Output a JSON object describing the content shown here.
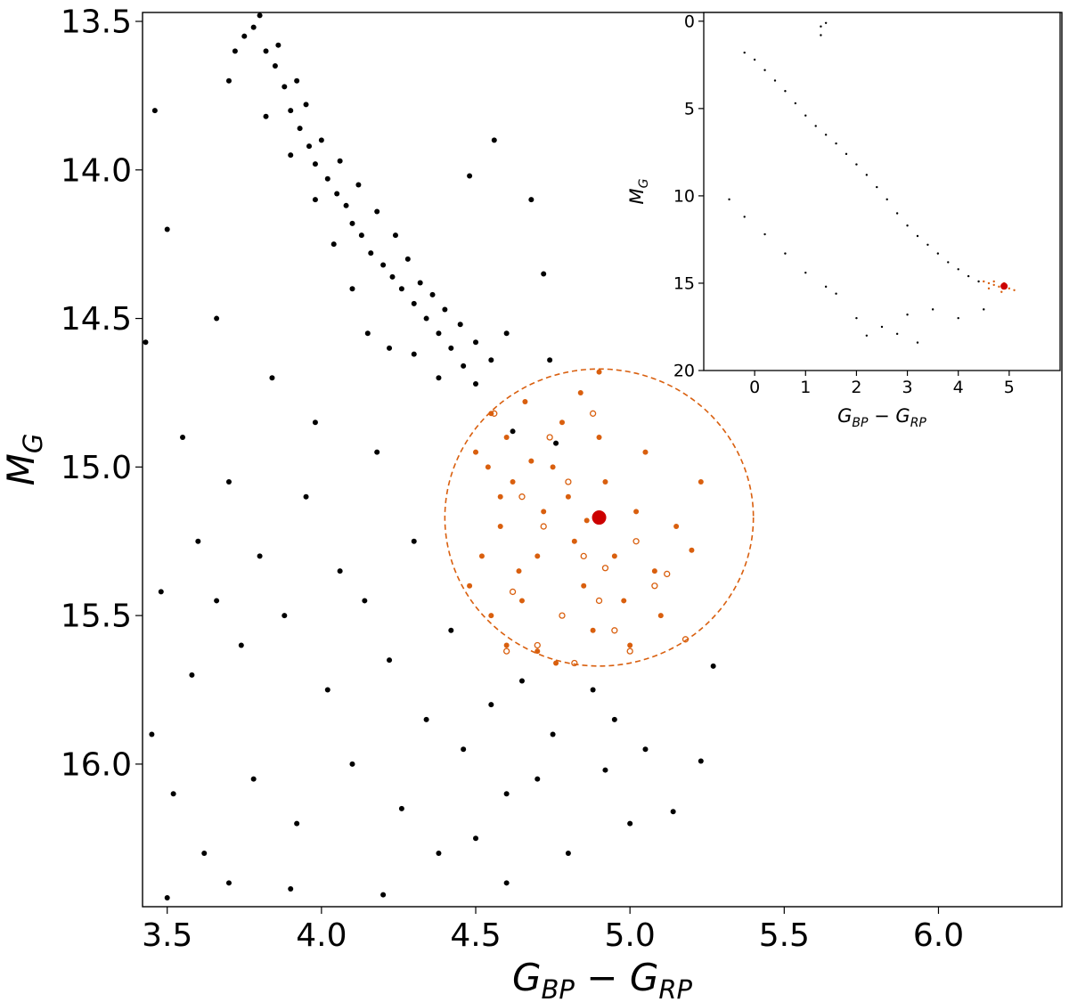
{
  "chart_data": [
    {
      "type": "scatter",
      "role": "main",
      "xlabel": "G_BP − G_RP",
      "ylabel": "M_G",
      "xlim": [
        3.42,
        6.4
      ],
      "ylim": [
        16.48,
        13.47
      ],
      "y_inverted": true,
      "xticks": [
        "3.5",
        "4.0",
        "4.5",
        "5.0",
        "5.5",
        "6.0"
      ],
      "yticks": [
        "13.5",
        "14.0",
        "14.5",
        "15.0",
        "15.5",
        "16.0"
      ],
      "grid": false,
      "highlight": {
        "x": 4.9,
        "y": 15.17,
        "color": "#cc0000"
      },
      "selection_circle": {
        "cx": 4.9,
        "cy": 15.17,
        "r": 0.5,
        "style": "dashed",
        "color": "#d95f0e"
      },
      "series": [
        {
          "marker": "filled",
          "color": "#000000",
          "points": [
            [
              3.78,
              13.52
            ],
            [
              3.82,
              13.6
            ],
            [
              3.85,
              13.65
            ],
            [
              3.88,
              13.72
            ],
            [
              3.9,
              13.8
            ],
            [
              3.93,
              13.86
            ],
            [
              3.96,
              13.92
            ],
            [
              3.98,
              13.98
            ],
            [
              4.02,
              14.03
            ],
            [
              4.05,
              14.08
            ],
            [
              4.08,
              14.12
            ],
            [
              4.1,
              14.18
            ],
            [
              4.13,
              14.22
            ],
            [
              4.16,
              14.28
            ],
            [
              4.2,
              14.32
            ],
            [
              4.23,
              14.36
            ],
            [
              4.26,
              14.4
            ],
            [
              4.3,
              14.45
            ],
            [
              4.34,
              14.5
            ],
            [
              4.38,
              14.55
            ],
            [
              4.42,
              14.6
            ],
            [
              4.46,
              14.66
            ],
            [
              4.5,
              14.72
            ],
            [
              3.75,
              13.55
            ],
            [
              3.8,
              13.48
            ],
            [
              3.72,
              13.6
            ],
            [
              3.86,
              13.58
            ],
            [
              3.92,
              13.7
            ],
            [
              3.95,
              13.78
            ],
            [
              4.0,
              13.9
            ],
            [
              4.06,
              13.97
            ],
            [
              4.12,
              14.05
            ],
            [
              4.18,
              14.14
            ],
            [
              4.24,
              14.22
            ],
            [
              4.28,
              14.3
            ],
            [
              4.32,
              14.38
            ],
            [
              4.36,
              14.42
            ],
            [
              4.4,
              14.47
            ],
            [
              4.45,
              14.52
            ],
            [
              4.5,
              14.58
            ],
            [
              4.55,
              14.64
            ],
            [
              3.7,
              13.7
            ],
            [
              3.82,
              13.82
            ],
            [
              3.9,
              13.95
            ],
            [
              3.98,
              14.1
            ],
            [
              4.04,
              14.25
            ],
            [
              4.1,
              14.4
            ],
            [
              4.15,
              14.55
            ],
            [
              4.22,
              14.6
            ],
            [
              4.3,
              14.62
            ],
            [
              4.38,
              14.7
            ],
            [
              3.43,
              14.58
            ],
            [
              3.46,
              13.8
            ],
            [
              3.5,
              14.2
            ],
            [
              3.55,
              14.9
            ],
            [
              3.48,
              15.42
            ],
            [
              3.52,
              16.1
            ],
            [
              3.45,
              15.9
            ],
            [
              3.6,
              15.25
            ],
            [
              3.62,
              16.3
            ],
            [
              3.58,
              15.7
            ],
            [
              3.66,
              14.5
            ],
            [
              3.7,
              15.05
            ],
            [
              3.74,
              15.6
            ],
            [
              3.78,
              16.05
            ],
            [
              3.8,
              15.3
            ],
            [
              3.84,
              14.7
            ],
            [
              3.88,
              15.5
            ],
            [
              3.92,
              16.2
            ],
            [
              3.95,
              15.1
            ],
            [
              3.98,
              14.85
            ],
            [
              4.02,
              15.75
            ],
            [
              4.06,
              15.35
            ],
            [
              4.1,
              16.0
            ],
            [
              4.14,
              15.45
            ],
            [
              4.18,
              14.95
            ],
            [
              4.22,
              15.65
            ],
            [
              4.26,
              16.15
            ],
            [
              4.3,
              15.25
            ],
            [
              4.34,
              15.85
            ],
            [
              4.38,
              16.3
            ],
            [
              4.42,
              15.55
            ],
            [
              4.46,
              15.95
            ],
            [
              4.5,
              16.25
            ],
            [
              4.55,
              15.8
            ],
            [
              4.6,
              16.1
            ],
            [
              4.65,
              15.72
            ],
            [
              4.7,
              16.05
            ],
            [
              4.75,
              15.9
            ],
            [
              4.8,
              16.3
            ],
            [
              4.88,
              15.75
            ],
            [
              4.92,
              16.02
            ],
            [
              4.95,
              15.85
            ],
            [
              5.0,
              16.2
            ],
            [
              5.05,
              15.95
            ],
            [
              5.14,
              16.16
            ],
            [
              5.23,
              15.99
            ],
            [
              5.27,
              15.67
            ],
            [
              4.62,
              14.88
            ],
            [
              4.74,
              14.64
            ],
            [
              4.76,
              14.92
            ],
            [
              4.68,
              14.1
            ],
            [
              4.72,
              14.35
            ],
            [
              4.56,
              13.9
            ],
            [
              4.48,
              14.02
            ],
            [
              4.6,
              14.55
            ],
            [
              3.66,
              15.45
            ],
            [
              3.7,
              16.4
            ],
            [
              3.9,
              16.42
            ],
            [
              4.2,
              16.44
            ],
            [
              4.6,
              16.4
            ],
            [
              3.5,
              16.45
            ]
          ]
        },
        {
          "marker": "filled",
          "color": "#d95f0e",
          "points": [
            [
              4.5,
              14.95
            ],
            [
              4.55,
              14.82
            ],
            [
              4.6,
              14.9
            ],
            [
              4.62,
              15.05
            ],
            [
              4.58,
              15.2
            ],
            [
              4.52,
              15.3
            ],
            [
              4.48,
              15.4
            ],
            [
              4.55,
              15.5
            ],
            [
              4.6,
              15.6
            ],
            [
              4.65,
              15.45
            ],
            [
              4.7,
              15.3
            ],
            [
              4.72,
              15.15
            ],
            [
              4.75,
              15.0
            ],
            [
              4.78,
              14.85
            ],
            [
              4.8,
              15.1
            ],
            [
              4.82,
              15.25
            ],
            [
              4.85,
              15.4
            ],
            [
              4.88,
              15.55
            ],
            [
              4.9,
              14.9
            ],
            [
              4.92,
              15.05
            ],
            [
              4.95,
              15.3
            ],
            [
              4.98,
              15.45
            ],
            [
              5.0,
              15.6
            ],
            [
              5.02,
              15.15
            ],
            [
              5.05,
              14.95
            ],
            [
              5.08,
              15.35
            ],
            [
              5.1,
              15.5
            ],
            [
              5.15,
              15.2
            ],
            [
              5.2,
              15.28
            ],
            [
              5.23,
              15.05
            ],
            [
              4.66,
              14.78
            ],
            [
              4.7,
              15.62
            ],
            [
              4.76,
              15.66
            ],
            [
              4.84,
              14.75
            ],
            [
              4.9,
              14.68
            ],
            [
              4.58,
              15.1
            ],
            [
              4.54,
              15.0
            ],
            [
              4.64,
              15.35
            ],
            [
              4.86,
              15.18
            ],
            [
              4.68,
              14.98
            ]
          ]
        },
        {
          "marker": "open",
          "color": "#d95f0e",
          "points": [
            [
              4.56,
              14.82
            ],
            [
              4.65,
              15.1
            ],
            [
              4.72,
              15.2
            ],
            [
              4.8,
              15.05
            ],
            [
              4.85,
              15.3
            ],
            [
              4.9,
              15.45
            ],
            [
              4.95,
              15.55
            ],
            [
              5.02,
              15.25
            ],
            [
              5.08,
              15.4
            ],
            [
              5.12,
              15.36
            ],
            [
              5.18,
              15.58
            ],
            [
              4.78,
              15.5
            ],
            [
              4.7,
              15.6
            ],
            [
              4.62,
              15.42
            ],
            [
              4.6,
              15.62
            ],
            [
              4.88,
              14.82
            ],
            [
              4.74,
              14.9
            ],
            [
              5.0,
              15.62
            ],
            [
              4.92,
              15.34
            ],
            [
              4.82,
              15.66
            ]
          ]
        }
      ]
    },
    {
      "type": "scatter",
      "role": "inset",
      "xlabel": "G_BP − G_RP",
      "ylabel": "M_G",
      "xlim": [
        -1.0,
        6.0
      ],
      "ylim": [
        20,
        -0.5
      ],
      "y_inverted": true,
      "xticks": [
        "0",
        "1",
        "2",
        "3",
        "4",
        "5"
      ],
      "yticks": [
        "0",
        "5",
        "10",
        "15",
        "20"
      ],
      "grid": false,
      "highlight": {
        "x": 4.9,
        "y": 15.17,
        "color": "#cc0000"
      },
      "series": [
        {
          "name": "",
          "marker": "small",
          "color": "#000000",
          "points": [
            [
              -0.2,
              1.8
            ],
            [
              0.0,
              2.2
            ],
            [
              0.2,
              2.8
            ],
            [
              0.4,
              3.4
            ],
            [
              0.6,
              4.0
            ],
            [
              0.8,
              4.7
            ],
            [
              1.0,
              5.4
            ],
            [
              1.2,
              6.0
            ],
            [
              1.4,
              6.5
            ],
            [
              1.6,
              7.0
            ],
            [
              1.8,
              7.6
            ],
            [
              2.0,
              8.2
            ],
            [
              2.2,
              8.8
            ],
            [
              2.4,
              9.5
            ],
            [
              2.6,
              10.2
            ],
            [
              2.8,
              11.0
            ],
            [
              3.0,
              11.7
            ],
            [
              3.2,
              12.3
            ],
            [
              3.4,
              12.8
            ],
            [
              3.6,
              13.3
            ],
            [
              3.8,
              13.8
            ],
            [
              4.0,
              14.2
            ],
            [
              4.2,
              14.6
            ],
            [
              4.4,
              14.9
            ],
            [
              1.3,
              0.3
            ],
            [
              1.4,
              0.1
            ],
            [
              1.3,
              0.8
            ],
            [
              -0.5,
              10.2
            ],
            [
              -0.2,
              11.2
            ],
            [
              0.2,
              12.2
            ],
            [
              0.6,
              13.3
            ],
            [
              1.0,
              14.4
            ],
            [
              1.4,
              15.2
            ],
            [
              1.6,
              15.6
            ],
            [
              2.0,
              17.0
            ],
            [
              2.5,
              17.5
            ],
            [
              3.0,
              16.8
            ],
            [
              3.5,
              16.5
            ],
            [
              4.0,
              17.0
            ],
            [
              4.5,
              16.5
            ],
            [
              2.2,
              18.0
            ],
            [
              3.2,
              18.4
            ],
            [
              2.8,
              17.9
            ]
          ]
        },
        {
          "name": "",
          "marker": "small",
          "color": "#d95f0e",
          "points": [
            [
              4.5,
              14.9
            ],
            [
              4.6,
              15.0
            ],
            [
              4.7,
              15.1
            ],
            [
              4.8,
              15.2
            ],
            [
              4.9,
              15.0
            ],
            [
              5.0,
              15.3
            ],
            [
              5.1,
              15.4
            ],
            [
              4.6,
              15.3
            ],
            [
              4.7,
              14.9
            ],
            [
              4.85,
              15.5
            ]
          ]
        }
      ]
    }
  ]
}
